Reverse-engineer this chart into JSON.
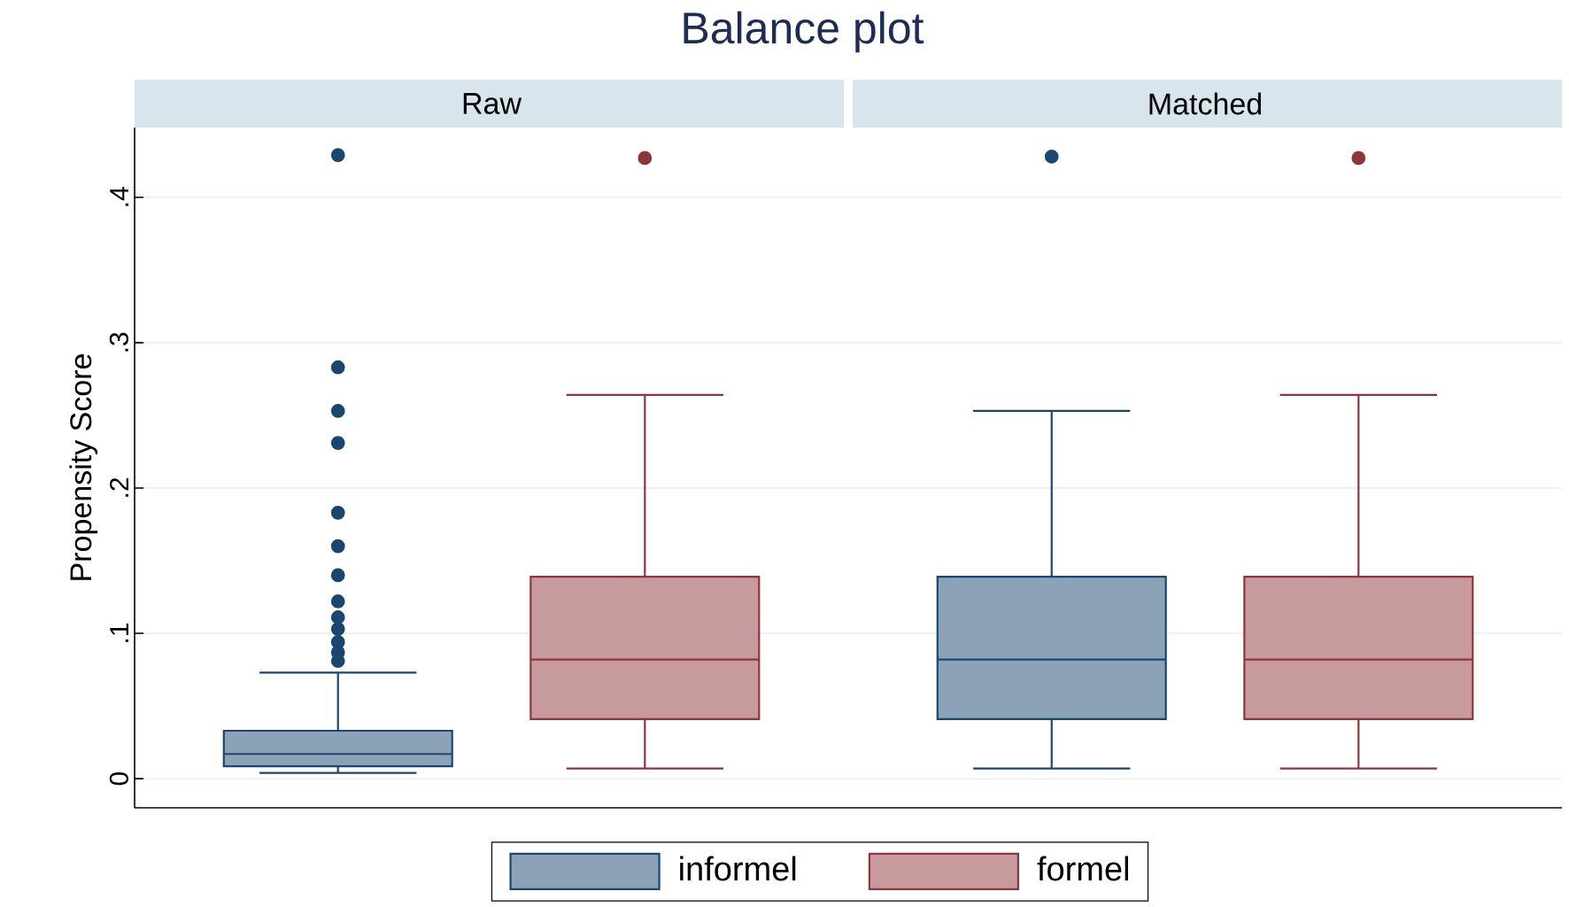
{
  "chart_data": {
    "type": "box",
    "title": "Balance plot",
    "ylabel": "Propensity Score",
    "categories": [
      "Raw",
      "Matched"
    ],
    "ylim": [
      -0.02,
      0.448
    ],
    "yticks": [
      0,
      {
        "value": 0.1,
        "label": ".1"
      },
      {
        "value": 0.2,
        "label": ".2"
      },
      {
        "value": 0.3,
        "label": ".3"
      },
      {
        "value": 0.4,
        "label": ".4"
      }
    ],
    "grid": "y",
    "legend": "bottom",
    "series": [
      {
        "name": "informel",
        "color": "#1a476f",
        "boxes": [
          {
            "low": 0.004,
            "q1": 0.0085,
            "median": 0.017,
            "q3": 0.033,
            "high": 0.073,
            "outliers": [
              0.429,
              0.283,
              0.253,
              0.231,
              0.183,
              0.16,
              0.14,
              0.122,
              0.111,
              0.103,
              0.094,
              0.087,
              0.081
            ]
          },
          {
            "low": 0.007,
            "q1": 0.041,
            "median": 0.082,
            "q3": 0.139,
            "high": 0.253,
            "outliers": [
              0.428
            ]
          }
        ]
      },
      {
        "name": "formel",
        "color": "#90353b",
        "boxes": [
          {
            "low": 0.007,
            "q1": 0.041,
            "median": 0.082,
            "q3": 0.139,
            "high": 0.264,
            "outliers": [
              0.427
            ]
          },
          {
            "low": 0.007,
            "q1": 0.041,
            "median": 0.082,
            "q3": 0.139,
            "high": 0.264,
            "outliers": [
              0.427
            ]
          }
        ]
      }
    ]
  }
}
